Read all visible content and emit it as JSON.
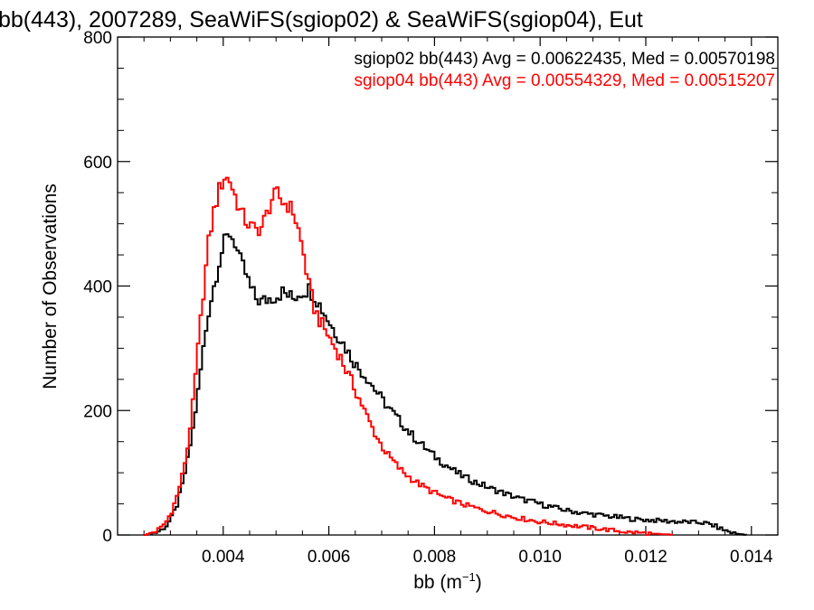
{
  "chart_data": {
    "type": "histogram",
    "title": "bb(443), 2007289, SeaWiFS(sgiop02) & SeaWiFS(sgiop04), Eut",
    "xlabel_main": "bb (m",
    "xlabel_sup": "−1",
    "xlabel_close": ")",
    "ylabel": "Number of Observations",
    "xlim": [
      0.002,
      0.0145
    ],
    "ylim": [
      0,
      800
    ],
    "x_ticks": [
      {
        "value": 0.004,
        "label": "0.004"
      },
      {
        "value": 0.006,
        "label": "0.006"
      },
      {
        "value": 0.008,
        "label": "0.008"
      },
      {
        "value": 0.01,
        "label": "0.010"
      },
      {
        "value": 0.012,
        "label": "0.012"
      },
      {
        "value": 0.014,
        "label": "0.014"
      }
    ],
    "y_ticks": [
      {
        "value": 0,
        "label": "0"
      },
      {
        "value": 200,
        "label": "200"
      },
      {
        "value": 400,
        "label": "400"
      },
      {
        "value": 600,
        "label": "600"
      },
      {
        "value": 800,
        "label": "800"
      }
    ],
    "legend_placement": "top-right",
    "series": [
      {
        "legend": "sgiop02 bb(443) Avg = 0.00622435, Med = 0.00570198",
        "color": "#000000",
        "points": [
          [
            0.0025,
            0
          ],
          [
            0.0026,
            2
          ],
          [
            0.0027,
            4
          ],
          [
            0.0028,
            8
          ],
          [
            0.0029,
            15
          ],
          [
            0.003,
            28
          ],
          [
            0.0031,
            48
          ],
          [
            0.0032,
            80
          ],
          [
            0.0033,
            120
          ],
          [
            0.0034,
            170
          ],
          [
            0.0035,
            230
          ],
          [
            0.0036,
            300
          ],
          [
            0.0037,
            360
          ],
          [
            0.0038,
            400
          ],
          [
            0.0039,
            440
          ],
          [
            0.004,
            470
          ],
          [
            0.0041,
            485
          ],
          [
            0.0042,
            470
          ],
          [
            0.0043,
            440
          ],
          [
            0.0044,
            420
          ],
          [
            0.0045,
            395
          ],
          [
            0.0046,
            380
          ],
          [
            0.0047,
            375
          ],
          [
            0.0048,
            378
          ],
          [
            0.0049,
            382
          ],
          [
            0.005,
            385
          ],
          [
            0.0051,
            390
          ],
          [
            0.0052,
            385
          ],
          [
            0.0053,
            380
          ],
          [
            0.0054,
            388
          ],
          [
            0.0055,
            392
          ],
          [
            0.0056,
            395
          ],
          [
            0.0057,
            385
          ],
          [
            0.0058,
            370
          ],
          [
            0.0059,
            355
          ],
          [
            0.006,
            340
          ],
          [
            0.0061,
            325
          ],
          [
            0.0062,
            315
          ],
          [
            0.0063,
            300
          ],
          [
            0.0064,
            285
          ],
          [
            0.0065,
            272
          ],
          [
            0.0066,
            262
          ],
          [
            0.0067,
            252
          ],
          [
            0.0068,
            240
          ],
          [
            0.0069,
            228
          ],
          [
            0.007,
            216
          ],
          [
            0.0071,
            205
          ],
          [
            0.0072,
            195
          ],
          [
            0.0073,
            185
          ],
          [
            0.0074,
            175
          ],
          [
            0.0075,
            165
          ],
          [
            0.0076,
            156
          ],
          [
            0.0077,
            148
          ],
          [
            0.0078,
            140
          ],
          [
            0.0079,
            132
          ],
          [
            0.008,
            125
          ],
          [
            0.0081,
            118
          ],
          [
            0.0082,
            112
          ],
          [
            0.0083,
            106
          ],
          [
            0.0084,
            100
          ],
          [
            0.0085,
            95
          ],
          [
            0.0086,
            91
          ],
          [
            0.0087,
            87
          ],
          [
            0.0088,
            83
          ],
          [
            0.0089,
            80
          ],
          [
            0.009,
            76
          ],
          [
            0.0091,
            73
          ],
          [
            0.0092,
            70
          ],
          [
            0.0093,
            67
          ],
          [
            0.0094,
            64
          ],
          [
            0.0095,
            61
          ],
          [
            0.0096,
            58
          ],
          [
            0.0097,
            56
          ],
          [
            0.0098,
            54
          ],
          [
            0.0099,
            52
          ],
          [
            0.01,
            49
          ],
          [
            0.0101,
            47
          ],
          [
            0.0102,
            45
          ],
          [
            0.0103,
            43
          ],
          [
            0.0104,
            41
          ],
          [
            0.0105,
            39
          ],
          [
            0.0106,
            38
          ],
          [
            0.0107,
            36
          ],
          [
            0.0108,
            35
          ],
          [
            0.0109,
            34
          ],
          [
            0.011,
            33
          ],
          [
            0.0111,
            32
          ],
          [
            0.0112,
            31
          ],
          [
            0.0113,
            30
          ],
          [
            0.0114,
            29
          ],
          [
            0.0115,
            28
          ],
          [
            0.0116,
            27
          ],
          [
            0.0117,
            26
          ],
          [
            0.0118,
            25
          ],
          [
            0.0119,
            25
          ],
          [
            0.012,
            24
          ],
          [
            0.0121,
            24
          ],
          [
            0.0122,
            23
          ],
          [
            0.0123,
            23
          ],
          [
            0.0124,
            22
          ],
          [
            0.0125,
            22
          ],
          [
            0.0126,
            21
          ],
          [
            0.0127,
            21
          ],
          [
            0.0128,
            21
          ],
          [
            0.0129,
            20
          ],
          [
            0.013,
            20
          ],
          [
            0.0131,
            19
          ],
          [
            0.0132,
            17
          ],
          [
            0.0133,
            14
          ],
          [
            0.0134,
            10
          ],
          [
            0.0135,
            7
          ],
          [
            0.0136,
            4
          ],
          [
            0.0137,
            2
          ],
          [
            0.0138,
            1
          ],
          [
            0.0139,
            0
          ]
        ]
      },
      {
        "legend": "sgiop04 bb(443) Avg = 0.00554329, Med = 0.00515207",
        "color": "#ff0000",
        "points": [
          [
            0.0025,
            0
          ],
          [
            0.0026,
            3
          ],
          [
            0.0027,
            6
          ],
          [
            0.0028,
            12
          ],
          [
            0.0029,
            22
          ],
          [
            0.003,
            38
          ],
          [
            0.0031,
            62
          ],
          [
            0.0032,
            95
          ],
          [
            0.0033,
            140
          ],
          [
            0.0034,
            210
          ],
          [
            0.0035,
            300
          ],
          [
            0.0036,
            390
          ],
          [
            0.0037,
            470
          ],
          [
            0.0038,
            520
          ],
          [
            0.0039,
            555
          ],
          [
            0.004,
            575
          ],
          [
            0.0041,
            570
          ],
          [
            0.0042,
            545
          ],
          [
            0.0043,
            520
          ],
          [
            0.0044,
            505
          ],
          [
            0.0045,
            495
          ],
          [
            0.0046,
            490
          ],
          [
            0.0047,
            495
          ],
          [
            0.0048,
            515
          ],
          [
            0.0049,
            540
          ],
          [
            0.005,
            548
          ],
          [
            0.0051,
            535
          ],
          [
            0.0052,
            530
          ],
          [
            0.0053,
            520
          ],
          [
            0.0054,
            490
          ],
          [
            0.0055,
            450
          ],
          [
            0.0056,
            400
          ],
          [
            0.0057,
            365
          ],
          [
            0.0058,
            345
          ],
          [
            0.0059,
            330
          ],
          [
            0.006,
            315
          ],
          [
            0.0061,
            300
          ],
          [
            0.0062,
            285
          ],
          [
            0.0063,
            265
          ],
          [
            0.0064,
            248
          ],
          [
            0.0065,
            228
          ],
          [
            0.0066,
            210
          ],
          [
            0.0067,
            190
          ],
          [
            0.0068,
            172
          ],
          [
            0.0069,
            155
          ],
          [
            0.007,
            140
          ],
          [
            0.0071,
            128
          ],
          [
            0.0072,
            118
          ],
          [
            0.0073,
            108
          ],
          [
            0.0074,
            100
          ],
          [
            0.0075,
            93
          ],
          [
            0.0076,
            87
          ],
          [
            0.0077,
            81
          ],
          [
            0.0078,
            76
          ],
          [
            0.0079,
            71
          ],
          [
            0.008,
            67
          ],
          [
            0.0081,
            63
          ],
          [
            0.0082,
            59
          ],
          [
            0.0083,
            56
          ],
          [
            0.0084,
            53
          ],
          [
            0.0085,
            50
          ],
          [
            0.0086,
            47
          ],
          [
            0.0087,
            45
          ],
          [
            0.0088,
            42
          ],
          [
            0.0089,
            40
          ],
          [
            0.009,
            38
          ],
          [
            0.0091,
            36
          ],
          [
            0.0092,
            34
          ],
          [
            0.0093,
            32
          ],
          [
            0.0094,
            30
          ],
          [
            0.0095,
            28
          ],
          [
            0.0096,
            27
          ],
          [
            0.0097,
            25
          ],
          [
            0.0098,
            24
          ],
          [
            0.0099,
            22
          ],
          [
            0.01,
            21
          ],
          [
            0.0101,
            20
          ],
          [
            0.0102,
            19
          ],
          [
            0.0103,
            18
          ],
          [
            0.0104,
            17
          ],
          [
            0.0105,
            16
          ],
          [
            0.0106,
            15
          ],
          [
            0.0107,
            14
          ],
          [
            0.0108,
            13
          ],
          [
            0.0109,
            12
          ],
          [
            0.011,
            11
          ],
          [
            0.0111,
            10
          ],
          [
            0.0112,
            9
          ],
          [
            0.0113,
            8
          ],
          [
            0.0114,
            7
          ],
          [
            0.0115,
            6
          ],
          [
            0.0116,
            5
          ],
          [
            0.0117,
            4
          ],
          [
            0.0118,
            4
          ],
          [
            0.0119,
            3
          ],
          [
            0.012,
            3
          ],
          [
            0.0121,
            2
          ],
          [
            0.0122,
            2
          ],
          [
            0.0123,
            1
          ],
          [
            0.0124,
            1
          ],
          [
            0.0125,
            0
          ]
        ]
      }
    ]
  }
}
